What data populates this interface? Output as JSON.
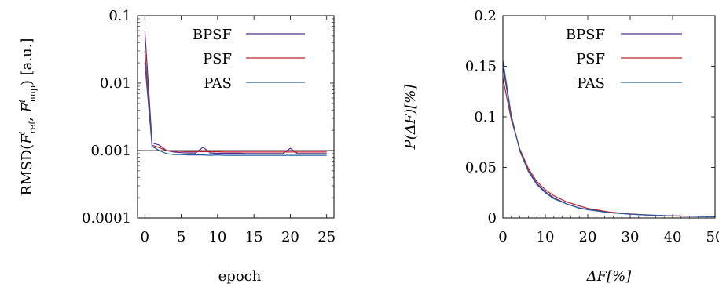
{
  "chart_data": [
    {
      "type": "line",
      "xlabel": "epoch",
      "ylabel": "RMSD(F^i_ref, F^i_nnp) [a.u.]",
      "ylabel_parts": {
        "pre": "RMSD(",
        "f1": "F",
        "sup1": "i",
        "sub1": "ref",
        "sep": ", ",
        "f2": "F",
        "sup2": "i",
        "sub2": "nnp",
        "post": ") [a.u.]"
      },
      "xlim": [
        -1,
        26
      ],
      "ylim": [
        0.0001,
        0.1
      ],
      "yscale": "log",
      "xticks": [
        0,
        5,
        10,
        15,
        20,
        25
      ],
      "yticks": [
        0.0001,
        0.001,
        0.01,
        0.1
      ],
      "ytick_labels": [
        "0.0001",
        "0.001",
        "0.01",
        "0.1"
      ],
      "grid": false,
      "legend_position": "top-right",
      "series": [
        {
          "name": "BPSF",
          "color": "#5b2a86",
          "x": [
            0,
            1,
            2,
            3,
            4,
            5,
            6,
            7,
            8,
            9,
            10,
            11,
            12,
            13,
            14,
            15,
            16,
            17,
            18,
            19,
            20,
            21,
            22,
            23,
            24,
            25
          ],
          "y": [
            0.06,
            0.0013,
            0.0012,
            0.001,
            0.00095,
            0.00093,
            0.00092,
            0.00092,
            0.00112,
            0.00092,
            0.00091,
            0.00091,
            0.00091,
            0.00091,
            0.0009,
            0.0009,
            0.0009,
            0.0009,
            0.0009,
            0.0009,
            0.00108,
            0.0009,
            0.0009,
            0.0009,
            0.0009,
            0.0009
          ]
        },
        {
          "name": "PSF",
          "color": "#b5262b",
          "x": [
            0,
            1,
            2,
            3,
            4,
            5,
            6,
            7,
            8,
            9,
            10,
            11,
            12,
            13,
            14,
            15,
            16,
            17,
            18,
            19,
            20,
            21,
            22,
            23,
            24,
            25
          ],
          "y": [
            0.03,
            0.0012,
            0.0011,
            0.001,
            0.00098,
            0.00097,
            0.00096,
            0.00096,
            0.00096,
            0.00096,
            0.00096,
            0.00095,
            0.00095,
            0.00095,
            0.00095,
            0.00095,
            0.00095,
            0.00095,
            0.00095,
            0.00095,
            0.00095,
            0.00095,
            0.00095,
            0.00095,
            0.00095,
            0.00095
          ]
        },
        {
          "name": "PAS",
          "color": "#1f5f9e",
          "x": [
            0,
            1,
            2,
            3,
            4,
            5,
            6,
            7,
            8,
            9,
            10,
            11,
            12,
            13,
            14,
            15,
            16,
            17,
            18,
            19,
            20,
            21,
            22,
            23,
            24,
            25
          ],
          "y": [
            0.02,
            0.00115,
            0.001,
            0.0009,
            0.00087,
            0.00087,
            0.00086,
            0.00086,
            0.00086,
            0.00085,
            0.00086,
            0.00085,
            0.00085,
            0.00085,
            0.00085,
            0.00085,
            0.00085,
            0.00085,
            0.00085,
            0.00085,
            0.00085,
            0.00085,
            0.00085,
            0.00085,
            0.00085,
            0.00085
          ]
        }
      ]
    },
    {
      "type": "line",
      "xlabel": "ΔF[%]",
      "ylabel": "P(ΔF)[%]",
      "xlim": [
        0,
        50
      ],
      "ylim": [
        0,
        0.2
      ],
      "yscale": "linear",
      "xticks": [
        0,
        10,
        20,
        30,
        40,
        50
      ],
      "yticks": [
        0,
        0.05,
        0.1,
        0.15,
        0.2
      ],
      "ytick_labels": [
        "0",
        "0.05",
        "0.1",
        "0.15",
        "0.2"
      ],
      "grid": false,
      "legend_position": "top-right",
      "series": [
        {
          "name": "BPSF",
          "color": "#5b2a86",
          "x": [
            0,
            2,
            4,
            6,
            8,
            10,
            12,
            15,
            18,
            20,
            25,
            30,
            35,
            40,
            45,
            50
          ],
          "y": [
            0.15,
            0.1,
            0.067,
            0.047,
            0.034,
            0.026,
            0.02,
            0.014,
            0.01,
            0.0085,
            0.0055,
            0.0038,
            0.0028,
            0.0021,
            0.0016,
            0.0013
          ]
        },
        {
          "name": "PSF",
          "color": "#b5262b",
          "x": [
            0,
            2,
            4,
            6,
            8,
            10,
            12,
            15,
            18,
            20,
            25,
            30,
            35,
            40,
            45,
            50
          ],
          "y": [
            0.138,
            0.097,
            0.068,
            0.049,
            0.036,
            0.028,
            0.022,
            0.016,
            0.012,
            0.0095,
            0.006,
            0.004,
            0.0029,
            0.0022,
            0.0017,
            0.0014
          ]
        },
        {
          "name": "PAS",
          "color": "#1f5f9e",
          "x": [
            0,
            2,
            4,
            6,
            8,
            10,
            12,
            15,
            18,
            20,
            25,
            30,
            35,
            40,
            45,
            50
          ],
          "y": [
            0.156,
            0.101,
            0.066,
            0.046,
            0.033,
            0.025,
            0.019,
            0.014,
            0.0098,
            0.0082,
            0.0053,
            0.0037,
            0.0027,
            0.002,
            0.0016,
            0.0012
          ]
        }
      ]
    }
  ]
}
